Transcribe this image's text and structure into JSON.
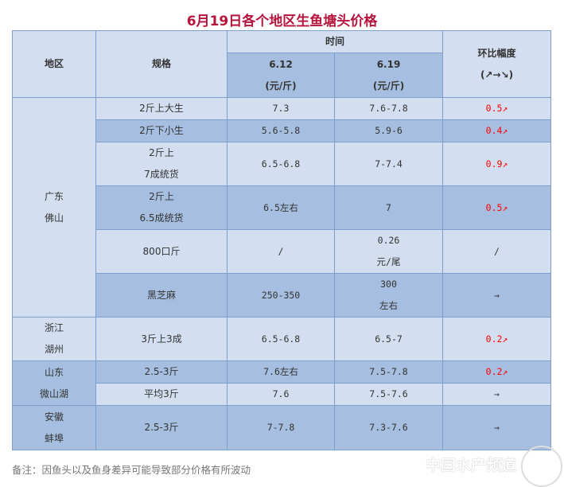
{
  "title": "6月19日各个地区生鱼塘头价格",
  "header": {
    "region": "地区",
    "spec": "规格",
    "time": "时间",
    "date1": "6.12\n(元/斤)",
    "date2": "6.19\n(元/斤)",
    "change": "环比幅度\n(↗→↘)"
  },
  "colors": {
    "title": "#b5143c",
    "up": "#ff0000",
    "light_row": "#d3dff0",
    "dark_row": "#a6bedf",
    "border": "#7d9fcd"
  },
  "rows": [
    {
      "region": "广东\n佛山",
      "spec": "2斤上大生",
      "p1": "7.3",
      "p2": "7.6-7.8",
      "change": "0.5↗",
      "trend": "up"
    },
    {
      "spec": "2斤下小生",
      "p1": "5.6-5.8",
      "p2": "5.9-6",
      "change": "0.4↗",
      "trend": "up"
    },
    {
      "spec": "2斤上\n7成统货",
      "p1": "6.5-6.8",
      "p2": "7-7.4",
      "change": "0.9↗",
      "trend": "up"
    },
    {
      "spec": "2斤上\n6.5成统货",
      "p1": "6.5左右",
      "p2": "7",
      "change": "0.5↗",
      "trend": "up"
    },
    {
      "spec": "800口斤",
      "p1": "/",
      "p2": "0.26\n元/尾",
      "change": "/",
      "trend": "none"
    },
    {
      "spec": "黑芝麻",
      "p1": "250-350",
      "p2": "300\n左右",
      "change": "→",
      "trend": "flat"
    },
    {
      "region": "浙江\n湖州",
      "spec": "3斤上3成",
      "p1": "6.5-6.8",
      "p2": "6.5-7",
      "change": "0.2↗",
      "trend": "up"
    },
    {
      "region": "山东\n微山湖",
      "spec": "2.5-3斤",
      "p1": "7.6左右",
      "p2": "7.5-7.8",
      "change": "0.2↗",
      "trend": "up"
    },
    {
      "spec": "平均3斤",
      "p1": "7.6",
      "p2": "7.5-7.6",
      "change": "→",
      "trend": "flat"
    },
    {
      "region": "安徽\n蚌埠",
      "spec": "2.5-3斤",
      "p1": "7-7.8",
      "p2": "7.3-7.6",
      "change": "→",
      "trend": "flat"
    }
  ],
  "note": "备注：因鱼头以及鱼身差异可能导致部分价格有所波动",
  "watermark": "中国水产频道"
}
